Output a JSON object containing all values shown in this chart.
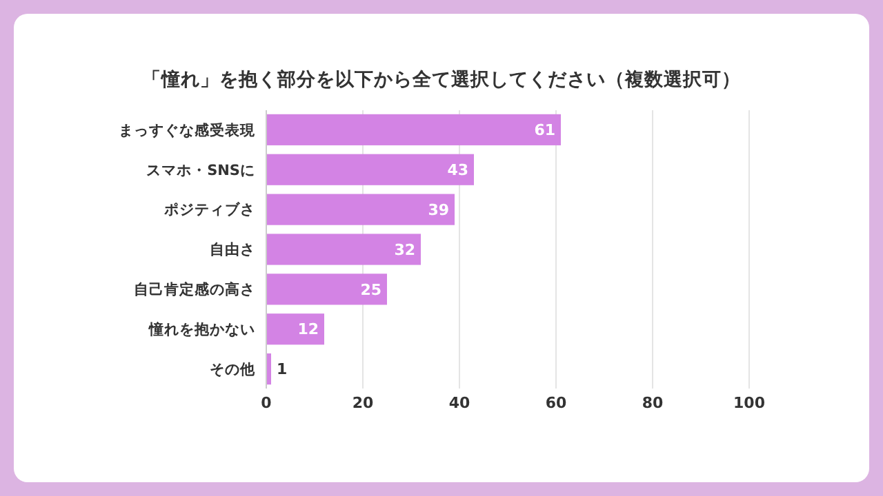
{
  "chart_data": {
    "type": "bar",
    "orientation": "horizontal",
    "title": "「憧れ」を抱く部分を以下から全て選択してください（複数選択可）",
    "categories": [
      "まっすぐな感受表現",
      "スマホ・SNSに",
      "ポジティブさ",
      "自由さ",
      "自己肯定感の高さ",
      "憧れを抱かない",
      "その他"
    ],
    "values": [
      61,
      43,
      39,
      32,
      25,
      12,
      1
    ],
    "color": "#d383e4",
    "xlim": [
      0,
      100
    ],
    "xticks": [
      0,
      20,
      40,
      60,
      80,
      100
    ],
    "grid": "x",
    "data_labels": true
  }
}
